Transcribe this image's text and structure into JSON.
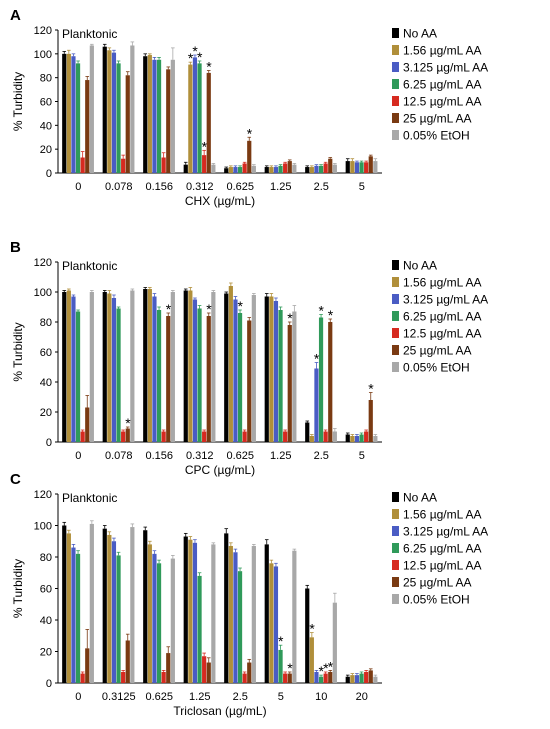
{
  "colors": {
    "No AA": "#000000",
    "1.56 µg/mL AA": "#b08f3a",
    "3.125 µg/mL AA": "#4a5cc4",
    "6.25 µg/mL AA": "#2f9a5a",
    "12.5 µg/mL AA": "#d62a20",
    "25 µg/mL AA": "#7a3a12",
    "0.05% EtOH": "#a8a8a8",
    "star": "#555555",
    "starRed": "#8b2a2a"
  },
  "chart_data": [
    {
      "type": "bar",
      "panel_label": "A",
      "inner_label": "Planktonic",
      "xlabel": "CHX (µg/mL)",
      "ylabel": "% Turbidity",
      "ylim": [
        0,
        120
      ],
      "yticks": [
        "0",
        "20",
        "40",
        "60",
        "80",
        "100",
        "120"
      ],
      "categories": [
        "0",
        "0.078",
        "0.156",
        "0.312",
        "0.625",
        "1.25",
        "2.5",
        "5"
      ],
      "legend": [
        "No AA",
        "1.56 µg/mL AA",
        "3.125 µg/mL AA",
        "6.25 µg/mL AA",
        "12.5 µg/mL AA",
        "25 µg/mL AA",
        "0.05% EtOH"
      ],
      "series": [
        {
          "name": "No AA",
          "values": [
            100,
            106,
            98,
            7,
            4,
            5,
            5,
            10
          ],
          "errors": [
            2,
            2,
            2,
            2,
            1,
            1,
            1,
            2
          ]
        },
        {
          "name": "1.56 µg/mL AA",
          "values": [
            100,
            103,
            99,
            91,
            5,
            5,
            5,
            10
          ],
          "errors": [
            3,
            2,
            1,
            2,
            1,
            1,
            1,
            2
          ]
        },
        {
          "name": "3.125 µg/mL AA",
          "values": [
            98,
            101,
            95,
            97,
            5,
            5,
            6,
            9
          ],
          "errors": [
            2,
            2,
            2,
            2,
            1,
            1,
            1,
            1
          ]
        },
        {
          "name": "6.25 µg/mL AA",
          "values": [
            92,
            92,
            95,
            92,
            5,
            6,
            6,
            9
          ],
          "errors": [
            2,
            2,
            2,
            2,
            1,
            1,
            1,
            1
          ]
        },
        {
          "name": "12.5 µg/mL AA",
          "values": [
            13,
            12,
            13,
            15,
            8,
            8,
            8,
            9
          ],
          "errors": [
            5,
            3,
            4,
            4,
            1,
            1,
            1,
            1
          ]
        },
        {
          "name": "25 µg/mL AA",
          "values": [
            78,
            82,
            87,
            84,
            27,
            10,
            12,
            14
          ],
          "errors": [
            3,
            3,
            2,
            2,
            3,
            1,
            1,
            1
          ]
        },
        {
          "name": "0.05% EtOH",
          "values": [
            107,
            107,
            95,
            7,
            6,
            7,
            7,
            10
          ],
          "errors": [
            1,
            3,
            10,
            1,
            1,
            1,
            1,
            2
          ]
        }
      ],
      "stars": [
        {
          "cat": 3,
          "series": 1,
          "label": "*"
        },
        {
          "cat": 3,
          "series": 2,
          "label": "*"
        },
        {
          "cat": 3,
          "series": 3,
          "label": "*"
        },
        {
          "cat": 3,
          "series": 4,
          "label": "*"
        },
        {
          "cat": 3,
          "series": 5,
          "label": "*"
        },
        {
          "cat": 4,
          "series": 5,
          "label": "*"
        }
      ]
    },
    {
      "type": "bar",
      "panel_label": "B",
      "inner_label": "Planktonic",
      "xlabel": "CPC (µg/mL)",
      "ylabel": "% Turbidity",
      "ylim": [
        0,
        120
      ],
      "yticks": [
        "0",
        "20",
        "40",
        "60",
        "80",
        "100",
        "120"
      ],
      "categories": [
        "0",
        "0.078",
        "0.156",
        "0.312",
        "0.625",
        "1.25",
        "2.5",
        "5"
      ],
      "legend": [
        "No AA",
        "1.56 µg/mL AA",
        "3.125 µg/mL AA",
        "6.25 µg/mL AA",
        "12.5 µg/mL AA",
        "25 µg/mL AA",
        "0.05% EtOH"
      ],
      "series": [
        {
          "name": "No AA",
          "values": [
            100,
            100,
            102,
            101,
            99,
            97,
            13,
            5
          ],
          "errors": [
            1,
            1,
            1,
            1,
            1,
            2,
            1,
            1
          ]
        },
        {
          "name": "1.56 µg/mL AA",
          "values": [
            101,
            99,
            102,
            101,
            104,
            97,
            4,
            4
          ],
          "errors": [
            1,
            2,
            1,
            2,
            2,
            2,
            1,
            1
          ]
        },
        {
          "name": "3.125 µg/mL AA",
          "values": [
            97,
            96,
            97,
            95,
            95,
            94,
            49,
            4
          ],
          "errors": [
            1,
            2,
            2,
            1,
            2,
            2,
            4,
            1
          ]
        },
        {
          "name": "6.25 µg/mL AA",
          "values": [
            87,
            89,
            88,
            89,
            86,
            88,
            83,
            5
          ],
          "errors": [
            1,
            1,
            2,
            2,
            2,
            2,
            2,
            1
          ]
        },
        {
          "name": "12.5 µg/mL AA",
          "values": [
            7,
            7,
            7,
            7,
            7,
            7,
            7,
            7
          ],
          "errors": [
            1,
            1,
            1,
            1,
            1,
            1,
            1,
            1
          ]
        },
        {
          "name": "25 µg/mL AA",
          "values": [
            23,
            9,
            84,
            84,
            81,
            78,
            80,
            28
          ],
          "errors": [
            8,
            1,
            2,
            2,
            2,
            2,
            2,
            5
          ]
        },
        {
          "name": "0.05% EtOH",
          "values": [
            100,
            101,
            100,
            100,
            98,
            87,
            7,
            4
          ],
          "errors": [
            1,
            1,
            1,
            1,
            1,
            4,
            2,
            1
          ]
        }
      ],
      "stars": [
        {
          "cat": 1,
          "series": 5,
          "label": "*"
        },
        {
          "cat": 2,
          "series": 5,
          "label": "*"
        },
        {
          "cat": 3,
          "series": 5,
          "label": "*"
        },
        {
          "cat": 4,
          "series": 3,
          "label": "*"
        },
        {
          "cat": 5,
          "series": 5,
          "label": "*"
        },
        {
          "cat": 6,
          "series": 2,
          "label": "*"
        },
        {
          "cat": 6,
          "series": 3,
          "label": "*"
        },
        {
          "cat": 6,
          "series": 5,
          "label": "*"
        },
        {
          "cat": 7,
          "series": 5,
          "label": "*"
        }
      ]
    },
    {
      "type": "bar",
      "panel_label": "C",
      "inner_label": "Planktonic",
      "xlabel": "Triclosan (µg/mL)",
      "ylabel": "% Turbidity",
      "ylim": [
        0,
        120
      ],
      "yticks": [
        "0",
        "20",
        "40",
        "60",
        "80",
        "100",
        "120"
      ],
      "categories": [
        "0",
        "0.3125",
        "0.625",
        "1.25",
        "2.5",
        "5",
        "10",
        "20"
      ],
      "legend": [
        "No AA",
        "1.56 µg/mL AA",
        "3.125 µg/mL AA",
        "6.25 µg/mL AA",
        "12.5 µg/mL AA",
        "25 µg/mL AA",
        "0.05% EtOH"
      ],
      "series": [
        {
          "name": "No AA",
          "values": [
            100,
            98,
            97,
            93,
            95,
            88,
            60,
            4
          ],
          "errors": [
            2,
            2,
            2,
            2,
            3,
            3,
            2,
            1
          ]
        },
        {
          "name": "1.56 µg/mL AA",
          "values": [
            95,
            94,
            88,
            91,
            87,
            76,
            29,
            5
          ],
          "errors": [
            2,
            2,
            2,
            2,
            2,
            2,
            3,
            1
          ]
        },
        {
          "name": "3.125 µg/mL AA",
          "values": [
            86,
            90,
            82,
            89,
            83,
            74,
            7,
            5
          ],
          "errors": [
            2,
            2,
            2,
            2,
            2,
            2,
            1,
            1
          ]
        },
        {
          "name": "6.25 µg/mL AA",
          "values": [
            82,
            81,
            76,
            68,
            71,
            21,
            4,
            6
          ],
          "errors": [
            2,
            2,
            2,
            2,
            2,
            3,
            1,
            1
          ]
        },
        {
          "name": "12.5 µg/mL AA",
          "values": [
            6,
            7,
            7,
            17,
            6,
            6,
            6,
            7
          ],
          "errors": [
            1,
            1,
            1,
            2,
            1,
            1,
            1,
            1
          ]
        },
        {
          "name": "25 µg/mL AA",
          "values": [
            22,
            27,
            19,
            13,
            13,
            6,
            7,
            8
          ],
          "errors": [
            12,
            4,
            4,
            3,
            2,
            1,
            1,
            1
          ]
        },
        {
          "name": "0.05% EtOH",
          "values": [
            101,
            99,
            79,
            88,
            87,
            84,
            51,
            4
          ],
          "errors": [
            2,
            2,
            2,
            1,
            1,
            1,
            6,
            1
          ]
        }
      ],
      "stars": [
        {
          "cat": 5,
          "series": 3,
          "label": "*"
        },
        {
          "cat": 5,
          "series": 5,
          "label": "*"
        },
        {
          "cat": 6,
          "series": 1,
          "label": "*"
        },
        {
          "cat": 6,
          "series": 3,
          "label": "*"
        },
        {
          "cat": 6,
          "series": 4,
          "label": "*"
        },
        {
          "cat": 6,
          "series": 5,
          "label": "*"
        }
      ]
    }
  ]
}
